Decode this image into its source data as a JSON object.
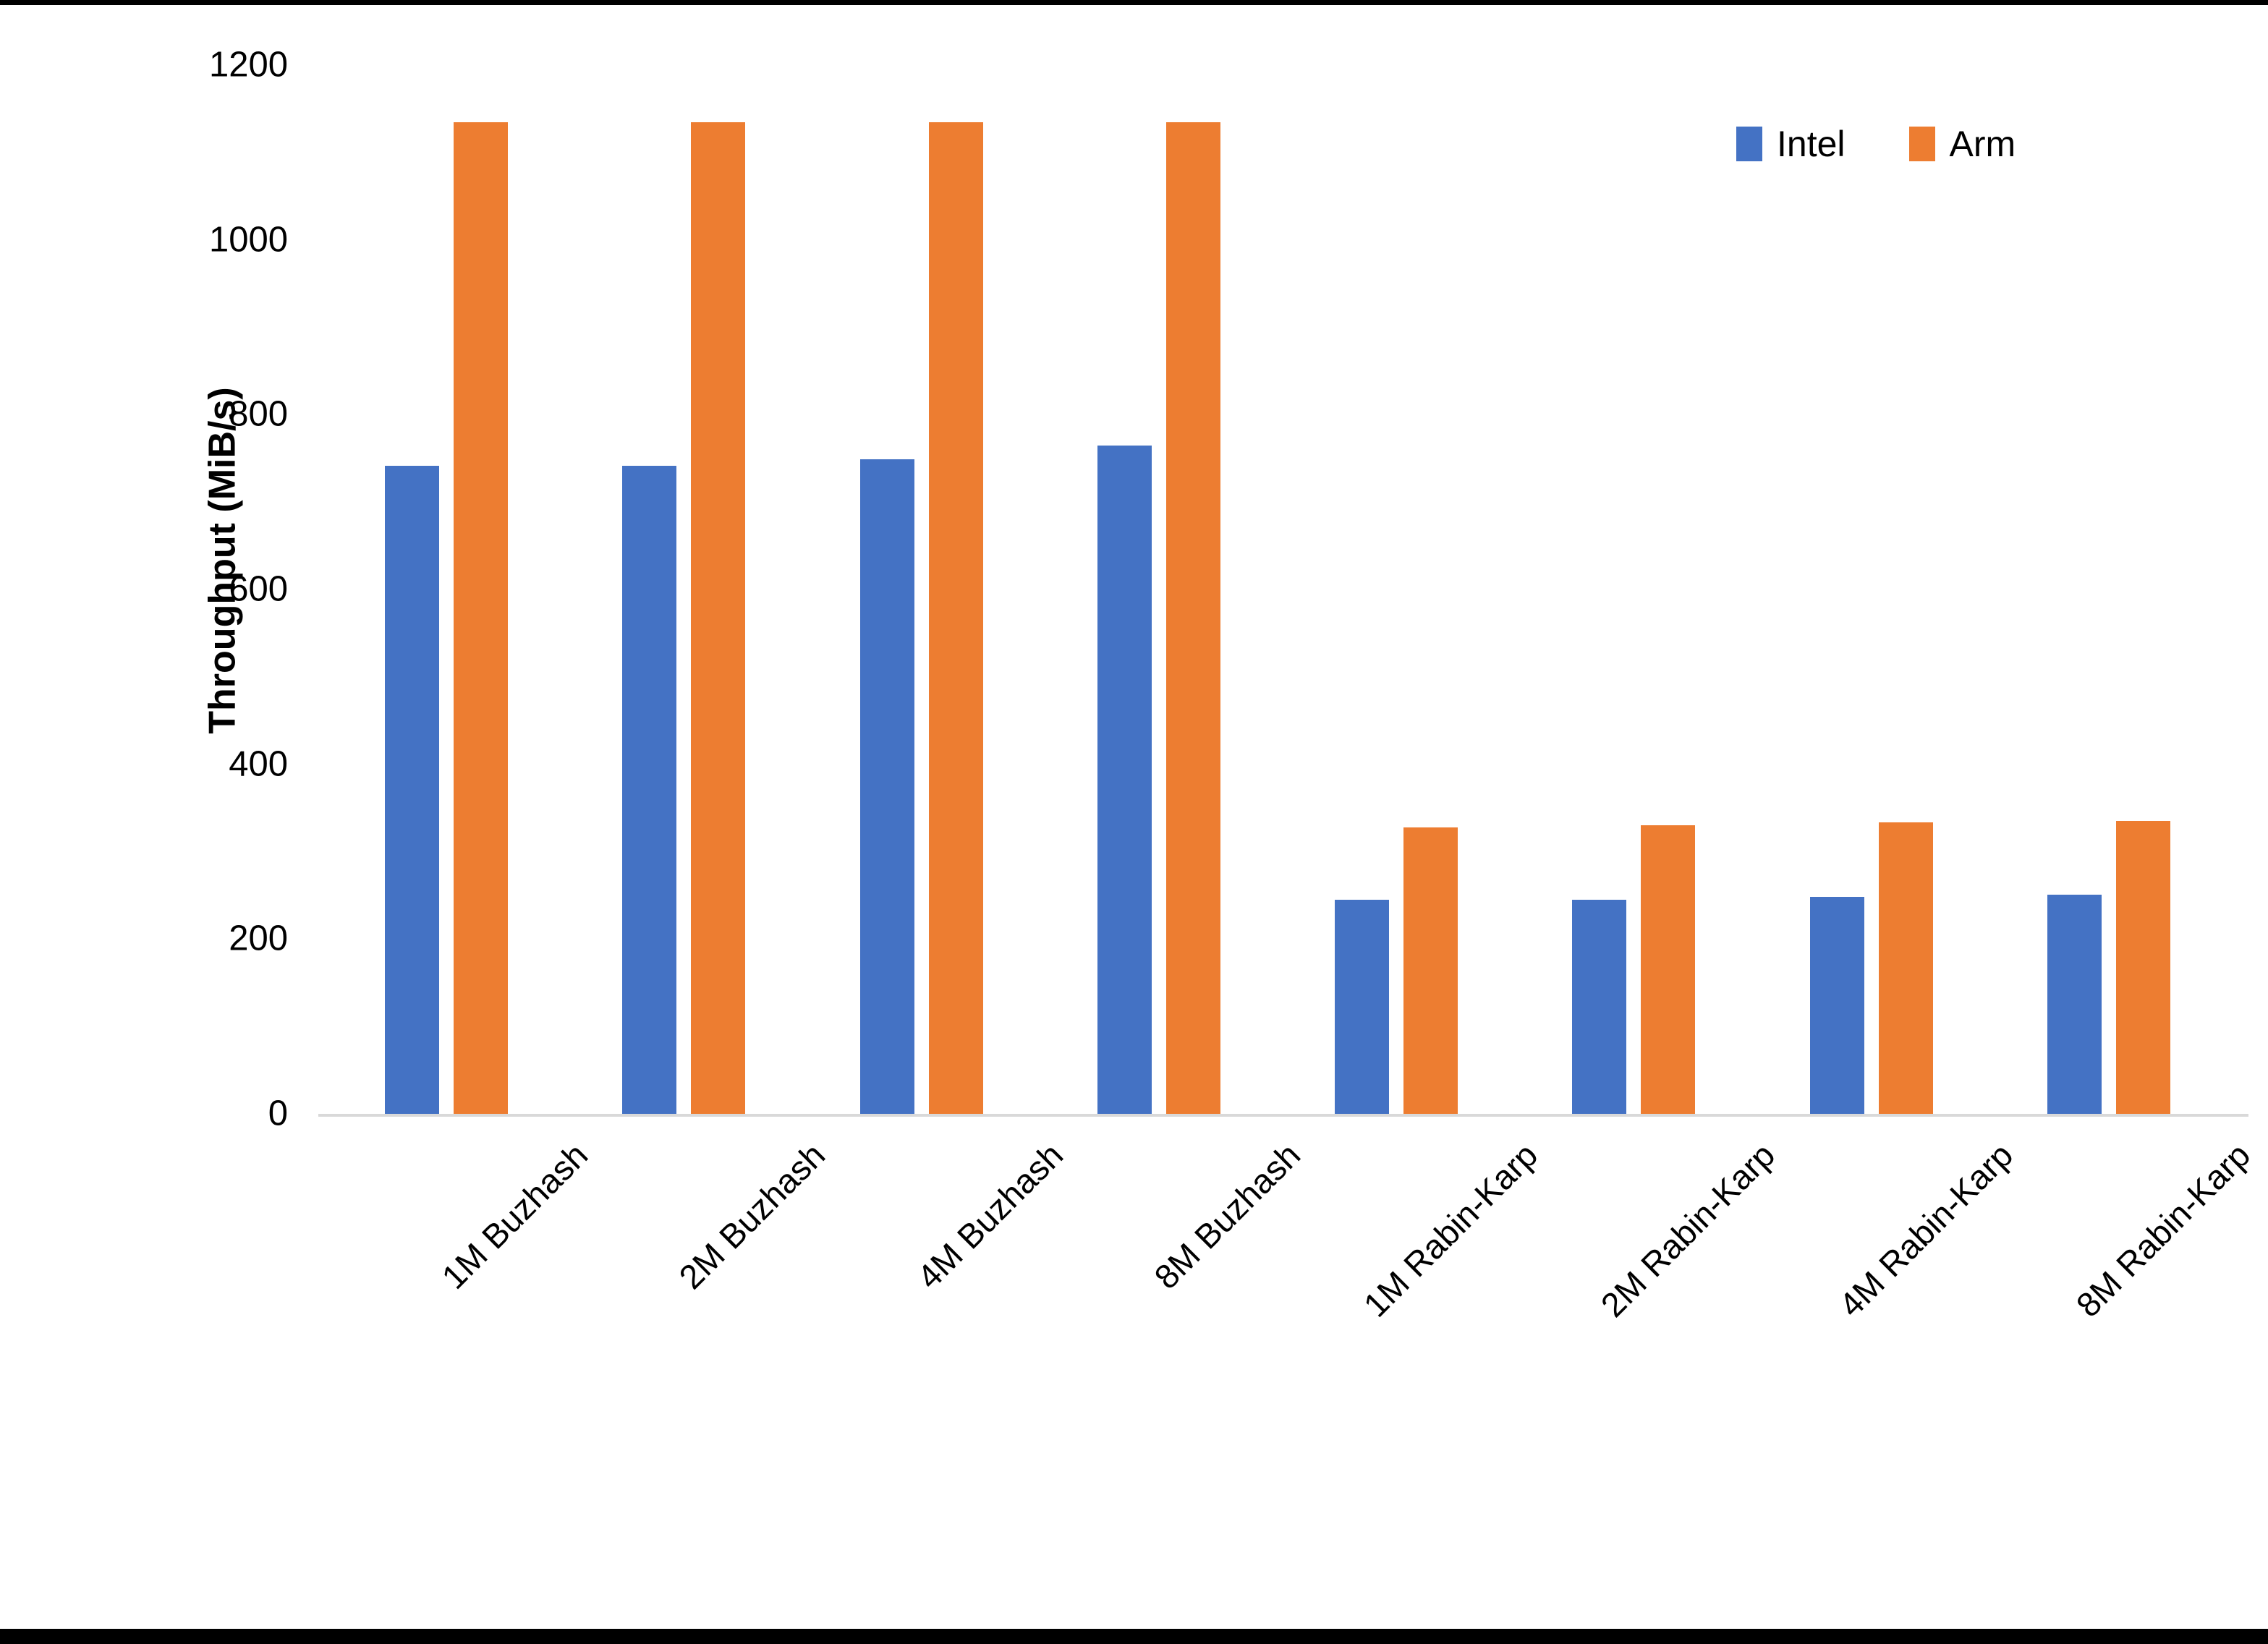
{
  "chart_data": {
    "type": "bar",
    "title": "",
    "categories": [
      "1M Buzhash",
      "2M Buzhash",
      "4M Buzhash",
      "8M Buzhash",
      "1M Rabin-Karp",
      "2M Rabin-Karp",
      "4M Rabin-Karp",
      "8M Rabin-Karp"
    ],
    "series": [
      {
        "name": "Intel",
        "color": "#4472C4",
        "values": [
          743,
          743,
          751,
          766,
          247,
          247,
          250,
          252
        ]
      },
      {
        "name": "Arm",
        "color": "#ED7D31",
        "values": [
          1136,
          1136,
          1136,
          1136,
          329,
          332,
          335,
          337
        ]
      }
    ],
    "xlabel": "",
    "ylabel": "Throughput (MiB/s)",
    "ylim": [
      0,
      1200
    ],
    "yticks": [
      0,
      200,
      400,
      600,
      800,
      1000,
      1200
    ],
    "grid": false,
    "legend_position": "top-right",
    "axis_line_color": "#D9D9D9",
    "text_color": "#000000",
    "background_color": "#FFFFFF"
  }
}
